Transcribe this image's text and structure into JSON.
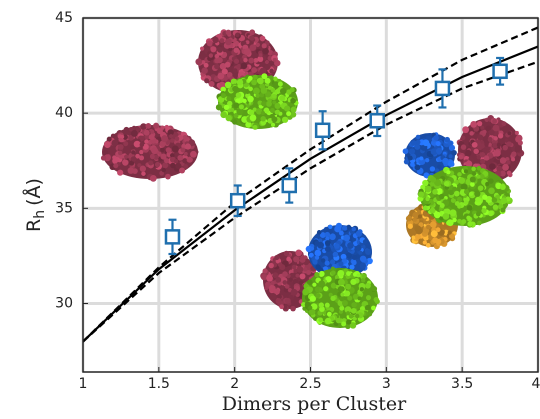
{
  "chart_data": {
    "type": "scatter",
    "xlabel": "Dimers per Cluster",
    "ylabel": "R",
    "ylabel_subscript": "h",
    "ylabel_unit": "(Å)",
    "xlim": [
      1,
      4
    ],
    "ylim": [
      26.4,
      45
    ],
    "xticks": [
      1,
      1.5,
      2,
      2.5,
      3,
      3.5,
      4
    ],
    "yticks": [
      30,
      35,
      40,
      45
    ],
    "grid": true,
    "series": [
      {
        "kind": "points",
        "marker": "square",
        "color": "#1f6fae",
        "x": [
          1.59,
          2.02,
          2.36,
          2.58,
          2.94,
          3.37,
          3.75
        ],
        "values": [
          33.5,
          35.4,
          36.2,
          39.1,
          39.6,
          41.3,
          42.2
        ],
        "errors": [
          0.9,
          0.8,
          0.9,
          1.0,
          0.8,
          1.0,
          0.7
        ]
      },
      {
        "kind": "line",
        "style": "solid",
        "color": "#000000",
        "x": [
          1,
          1.5,
          2,
          2.5,
          3,
          3.5,
          4
        ],
        "values": [
          28,
          31.8,
          34.9,
          37.6,
          39.9,
          41.9,
          43.5
        ]
      },
      {
        "kind": "line",
        "style": "dashed",
        "color": "#000000",
        "x": [
          1,
          1.5,
          2,
          2.5,
          3,
          3.5,
          4
        ],
        "values": [
          28,
          31.9,
          35.3,
          38.1,
          40.6,
          42.8,
          44.5
        ]
      },
      {
        "kind": "line",
        "style": "dashed",
        "color": "#000000",
        "x": [
          1,
          1.5,
          2,
          2.5,
          3,
          3.5,
          4
        ],
        "values": [
          28,
          31.6,
          34.5,
          37.1,
          39.4,
          41.3,
          42.7
        ]
      }
    ]
  }
}
